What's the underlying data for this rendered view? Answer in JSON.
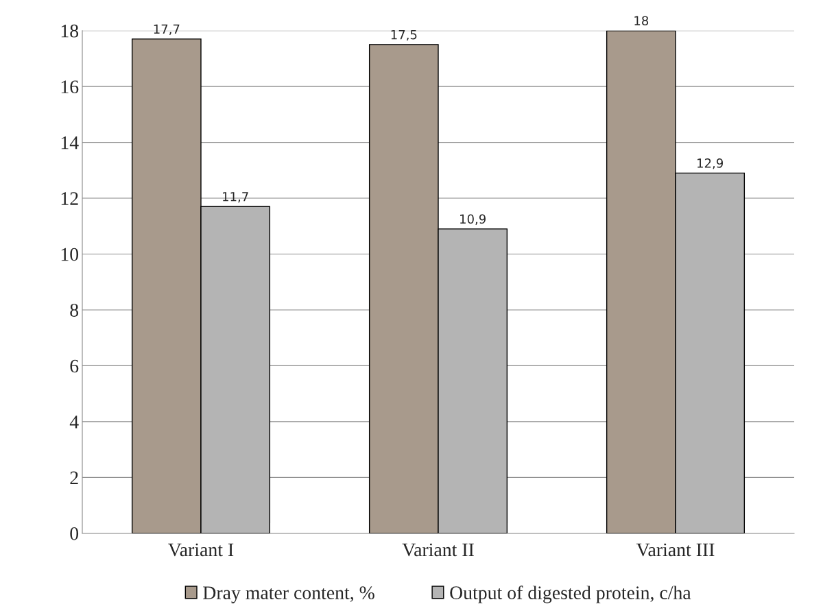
{
  "chart_data": {
    "type": "bar",
    "categories": [
      "Variant I",
      "Variant II",
      "Variant III"
    ],
    "series": [
      {
        "name": "Dray mater content, %",
        "color": "#a89a8c",
        "values": [
          17.7,
          17.5,
          18
        ],
        "value_labels": [
          "17,7",
          "17,5",
          "18"
        ]
      },
      {
        "name": "Output of digested protein, c/ha",
        "color": "#b4b4b4",
        "values": [
          11.7,
          10.9,
          12.9
        ],
        "value_labels": [
          "11,7",
          "10,9",
          "12,9"
        ]
      }
    ],
    "ylim": [
      0,
      18
    ],
    "yticks": [
      0,
      2,
      4,
      6,
      8,
      10,
      12,
      14,
      16,
      18
    ],
    "grid": "y",
    "legend": "bottom"
  }
}
